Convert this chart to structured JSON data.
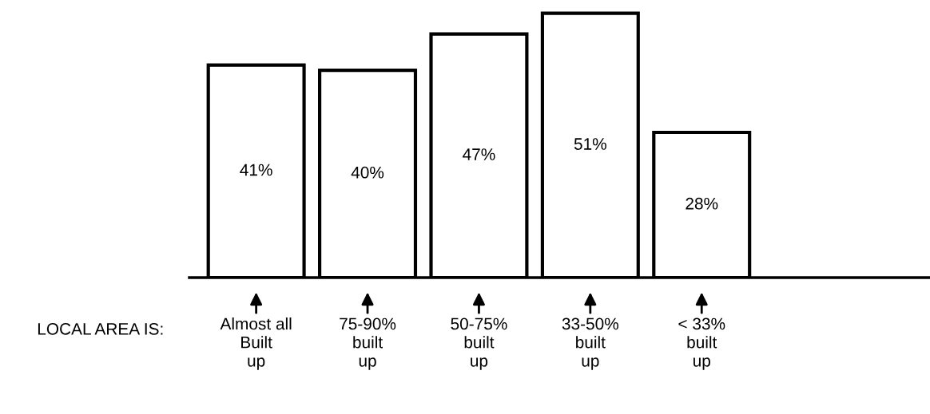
{
  "chart_data": {
    "type": "bar",
    "categories": [
      "Almost all\nBuilt\nup",
      "75-90%\nbuilt\nup",
      "50-75%\nbuilt\nup",
      "33-50%\nbuilt\nup",
      "< 33%\nbuilt\nup"
    ],
    "values": [
      41,
      40,
      47,
      51,
      28
    ],
    "value_labels": [
      "41%",
      "40%",
      "47%",
      "51%",
      "28%"
    ],
    "xlabel": "LOCAL AREA IS:",
    "color": "#ffffff",
    "tick_labels": "x",
    "grid": false,
    "legend": false
  }
}
